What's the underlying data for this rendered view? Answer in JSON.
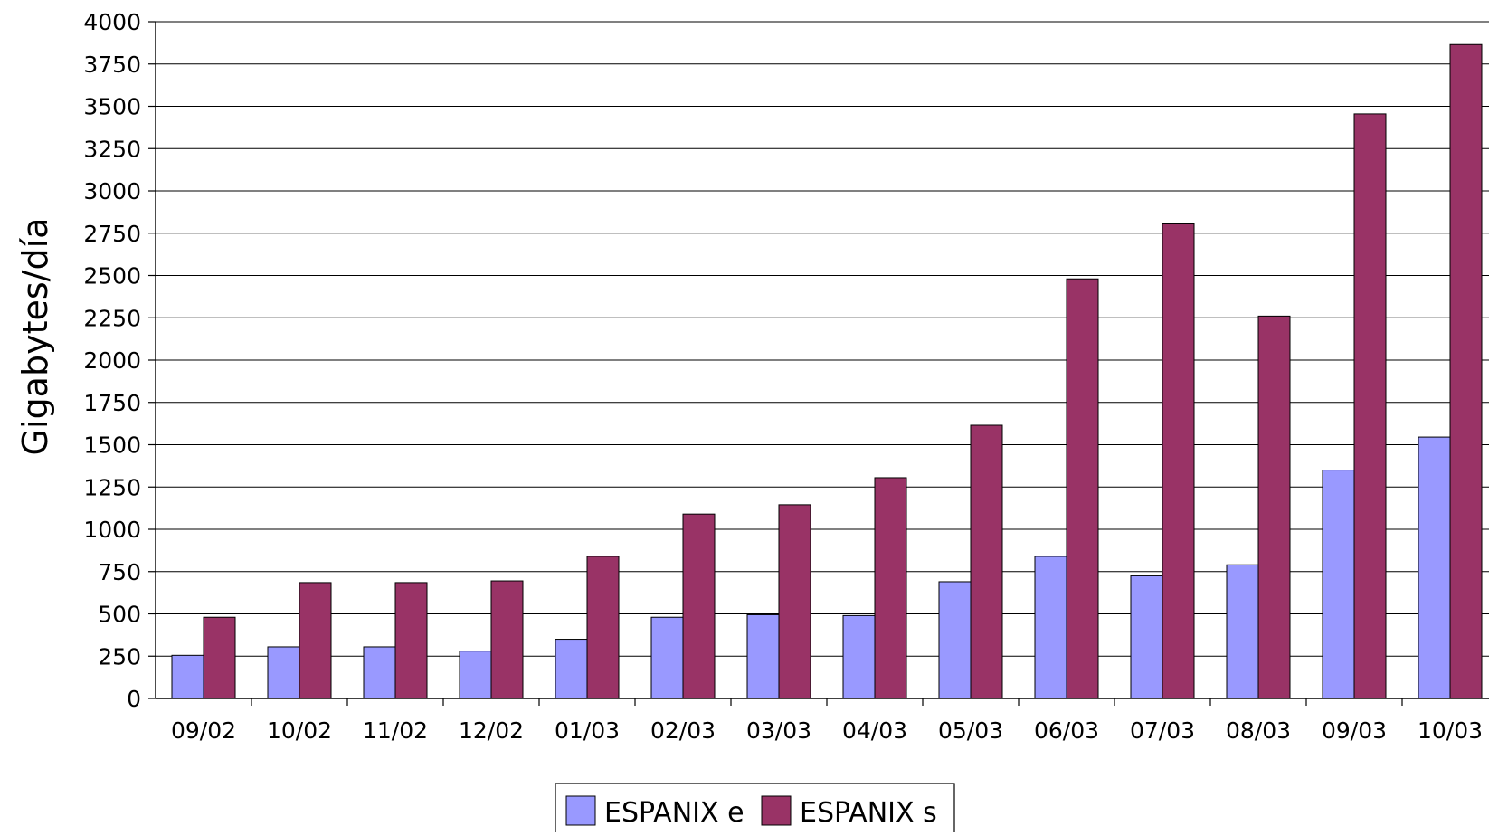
{
  "chart_data": {
    "type": "bar",
    "title": "",
    "xlabel": "",
    "ylabel": "Gigabytes/día",
    "ylim": [
      0,
      4000
    ],
    "yticks": [
      0,
      250,
      500,
      750,
      1000,
      1250,
      1500,
      1750,
      2000,
      2250,
      2500,
      2750,
      3000,
      3250,
      3500,
      3750,
      4000
    ],
    "ytick_labels": [
      "0",
      "250",
      "500",
      "750",
      "1000",
      "1250",
      "1500",
      "1750",
      "2000",
      "2250",
      "2500",
      "2750",
      "3000",
      "3250",
      "3500",
      "3750",
      "4000"
    ],
    "categories": [
      "09/02",
      "10/02",
      "11/02",
      "12/02",
      "01/03",
      "02/03",
      "03/03",
      "04/03",
      "05/03",
      "06/03",
      "07/03",
      "08/03",
      "09/03",
      "10/03"
    ],
    "series": [
      {
        "name": "ESPANIX e",
        "color": "#9999ff",
        "values": [
          255,
          305,
          305,
          280,
          350,
          480,
          495,
          490,
          690,
          840,
          725,
          790,
          1350,
          1545
        ]
      },
      {
        "name": "ESPANIX s",
        "color": "#993366",
        "values": [
          480,
          685,
          685,
          695,
          840,
          1090,
          1145,
          1305,
          1615,
          2480,
          2805,
          2260,
          3455,
          3865
        ]
      }
    ],
    "grid": true,
    "legend_position": "bottom-center"
  }
}
